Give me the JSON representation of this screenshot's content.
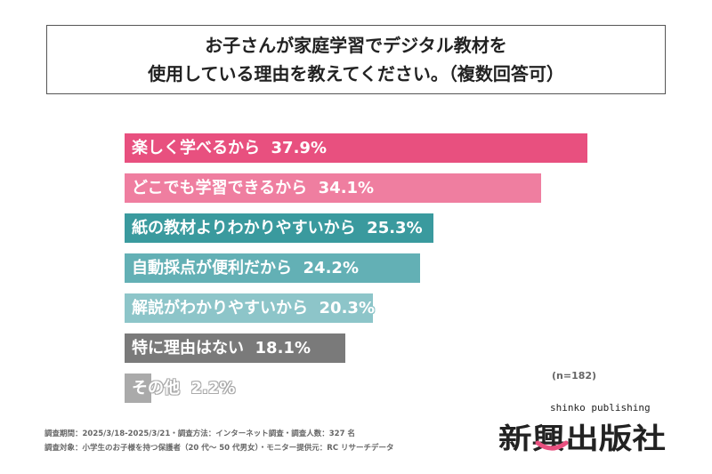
{
  "title_lines": [
    "お子さんが家庭学習でデジタル教材を",
    "使用している理由を教えてください。（複数回答可）"
  ],
  "chart_data": {
    "type": "bar",
    "orientation": "horizontal",
    "title": "お子さんが家庭学習でデジタル教材を使用している理由を教えてください。（複数回答可）",
    "categories": [
      "楽しく学べるから",
      "どこでも学習できるから",
      "紙の教材よりわかりやすいから",
      "自動採点が便利だから",
      "解説がわかりやすいから",
      "特に理由はない",
      "その他"
    ],
    "values": [
      37.9,
      34.1,
      25.3,
      24.2,
      20.3,
      18.1,
      2.2
    ],
    "value_labels": [
      "37.9%",
      "34.1%",
      "25.3%",
      "24.2%",
      "20.3%",
      "18.1%",
      "2.2%"
    ],
    "colors": [
      "#e8507f",
      "#ef7ea0",
      "#3a9a9e",
      "#63b0b5",
      "#8dc5c9",
      "#7a7a7a",
      "#aaaaaa"
    ],
    "unit": "%",
    "grid": false
  },
  "sample_size": "(n=182)",
  "footer": [
    "調査期間：2025/3/18-2025/3/21・調査方法：インターネット調査・調査人数：327 名",
    "調査対象：小学生のお子様を持つ保護者（20 代～ 50 代男女）・モニター提供元：RC リサーチデータ"
  ],
  "logo": {
    "text": "新興出版社",
    "sub": "shinko publishing"
  }
}
